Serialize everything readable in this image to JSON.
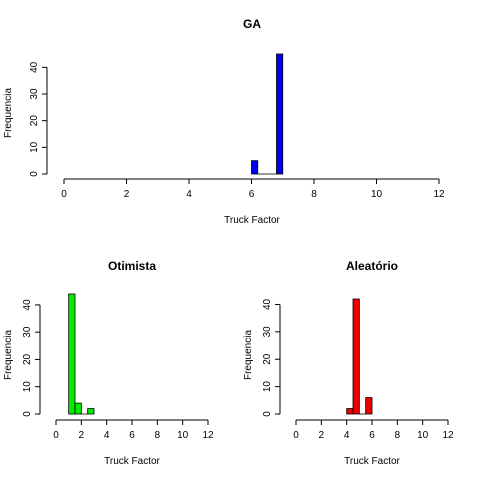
{
  "chart_data": [
    {
      "type": "bar",
      "title": "GA",
      "xlabel": "Truck Factor",
      "ylabel": "Frequencia",
      "color": "#0000ee",
      "xlim": [
        0,
        12
      ],
      "ylim": [
        0,
        45
      ],
      "x_ticks": [
        0,
        2,
        4,
        6,
        8,
        10,
        12
      ],
      "y_ticks": [
        0,
        10,
        20,
        30,
        40
      ],
      "bins": [
        {
          "x0": 6.0,
          "x1": 6.2,
          "value": 5
        },
        {
          "x0": 6.2,
          "x1": 6.4,
          "value": 0
        },
        {
          "x0": 6.4,
          "x1": 6.6,
          "value": 0
        },
        {
          "x0": 6.6,
          "x1": 6.8,
          "value": 0
        },
        {
          "x0": 6.8,
          "x1": 7.0,
          "value": 45
        }
      ]
    },
    {
      "type": "bar",
      "title": "Otimista",
      "xlabel": "Truck Factor",
      "ylabel": "Frequencia",
      "color": "#00ee00",
      "xlim": [
        0,
        12
      ],
      "ylim": [
        0,
        44
      ],
      "x_ticks": [
        0,
        2,
        4,
        6,
        8,
        10,
        12
      ],
      "y_ticks": [
        0,
        10,
        20,
        30,
        40
      ],
      "bins": [
        {
          "x0": 1.0,
          "x1": 1.5,
          "value": 44
        },
        {
          "x0": 1.5,
          "x1": 2.0,
          "value": 4
        },
        {
          "x0": 2.0,
          "x1": 2.5,
          "value": 0
        },
        {
          "x0": 2.5,
          "x1": 3.0,
          "value": 2
        }
      ]
    },
    {
      "type": "bar",
      "title": "Aleatório",
      "xlabel": "Truck Factor",
      "ylabel": "Frequencia",
      "color": "#ee0000",
      "xlim": [
        0,
        12
      ],
      "ylim": [
        0,
        42
      ],
      "x_ticks": [
        0,
        2,
        4,
        6,
        8,
        10,
        12
      ],
      "y_ticks": [
        0,
        10,
        20,
        30,
        40
      ],
      "bins": [
        {
          "x0": 4.0,
          "x1": 4.5,
          "value": 2
        },
        {
          "x0": 4.5,
          "x1": 5.0,
          "value": 42
        },
        {
          "x0": 5.0,
          "x1": 5.5,
          "value": 0
        },
        {
          "x0": 5.5,
          "x1": 6.0,
          "value": 6
        }
      ]
    }
  ]
}
